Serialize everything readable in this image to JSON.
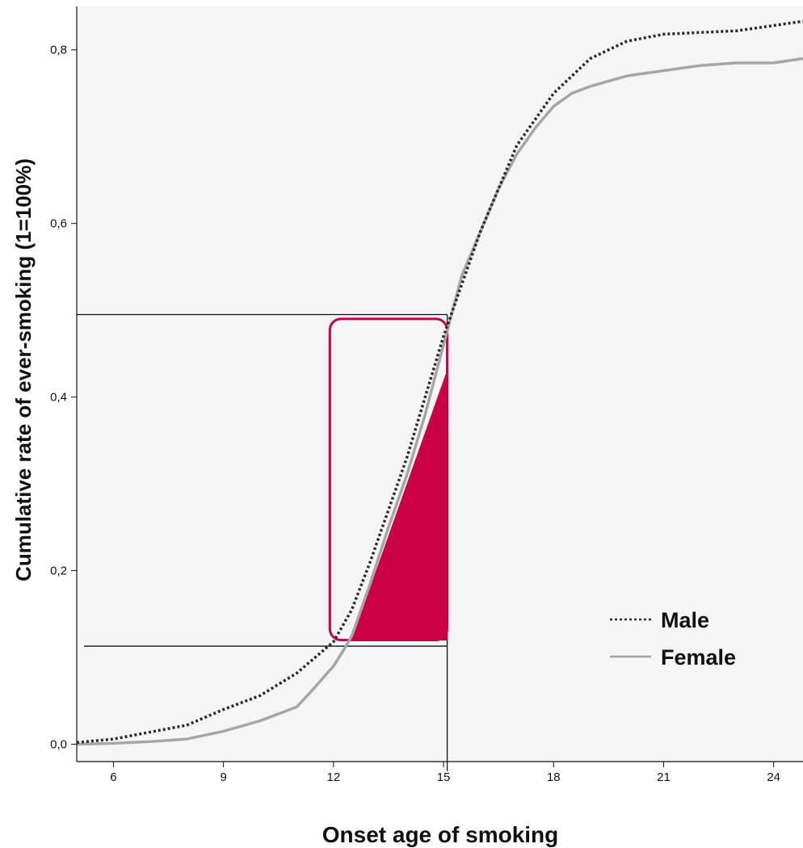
{
  "chart_data": {
    "type": "line",
    "title": "",
    "xlabel": "Onset age of smoking",
    "ylabel": "Cumulative rate of ever-smoking (1=100%)",
    "xlim": [
      5,
      24.8
    ],
    "ylim": [
      -0.02,
      0.85
    ],
    "x_ticks": [
      6,
      9,
      12,
      15,
      18,
      21,
      24
    ],
    "x_tick_labels": [
      "6",
      "9",
      "12",
      "15",
      "18",
      "21",
      "24"
    ],
    "y_ticks": [
      0.0,
      0.2,
      0.4,
      0.6,
      0.8
    ],
    "y_tick_labels": [
      "0,0",
      "0,2",
      "0,4",
      "0,6",
      "0,8"
    ],
    "grid": false,
    "legend_position": "right",
    "series": [
      {
        "name": "Male",
        "color": "#2a2a2a",
        "style": "dotted",
        "x": [
          5,
          6,
          7,
          8,
          9,
          10,
          11,
          12,
          12.5,
          13,
          13.5,
          14,
          14.5,
          15,
          15.5,
          16,
          16.5,
          17,
          17.5,
          18,
          18.5,
          19,
          19.5,
          20,
          21,
          22,
          23,
          24,
          24.8
        ],
        "y": [
          0.002,
          0.006,
          0.014,
          0.022,
          0.04,
          0.056,
          0.082,
          0.118,
          0.155,
          0.21,
          0.27,
          0.33,
          0.4,
          0.47,
          0.53,
          0.59,
          0.64,
          0.69,
          0.72,
          0.75,
          0.77,
          0.79,
          0.8,
          0.81,
          0.818,
          0.82,
          0.822,
          0.828,
          0.833
        ]
      },
      {
        "name": "Female",
        "color": "#a6a6a6",
        "style": "solid",
        "x": [
          5,
          6,
          7,
          8,
          9,
          10,
          11,
          11.5,
          12,
          12.3,
          12.5,
          13,
          13.5,
          14,
          14.5,
          15,
          15.5,
          16,
          16.5,
          17,
          17.5,
          18,
          18.5,
          19,
          20,
          21,
          22,
          23,
          24,
          24.8
        ],
        "y": [
          0.0,
          0.001,
          0.003,
          0.006,
          0.015,
          0.027,
          0.043,
          0.066,
          0.09,
          0.11,
          0.125,
          0.185,
          0.25,
          0.31,
          0.38,
          0.46,
          0.54,
          0.59,
          0.64,
          0.68,
          0.71,
          0.735,
          0.75,
          0.758,
          0.77,
          0.776,
          0.782,
          0.785,
          0.785,
          0.79
        ]
      }
    ],
    "annotations": {
      "reference_y": [
        0.495,
        0.113
      ],
      "reference_x": 15.1,
      "highlight_box": {
        "x0": 11.9,
        "x1": 15.1,
        "y0": 0.12,
        "y1": 0.49,
        "color": "#cc0044"
      },
      "filled_triangle": {
        "points": [
          [
            12.5,
            0.12
          ],
          [
            15.1,
            0.12
          ],
          [
            15.1,
            0.43
          ]
        ],
        "color": "#cc0044"
      }
    }
  }
}
